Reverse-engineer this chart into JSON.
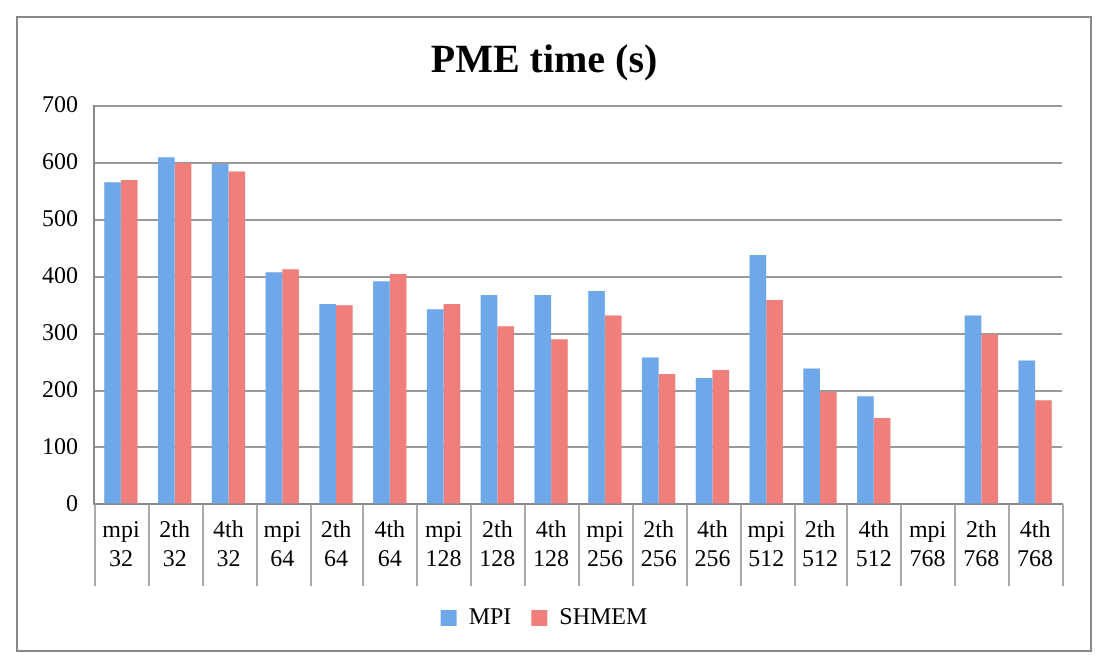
{
  "chart_data": {
    "type": "bar",
    "title": "PME time (s)",
    "categories": [
      "mpi 32",
      "2th 32",
      "4th 32",
      "mpi 64",
      "2th 64",
      "4th 64",
      "mpi 128",
      "2th 128",
      "4th 128",
      "mpi 256",
      "2th 256",
      "4th 256",
      "mpi 512",
      "2th 512",
      "4th 512",
      "mpi 768",
      "2th 768",
      "4th 768"
    ],
    "series": [
      {
        "name": "MPI",
        "color": "#6fa8e8",
        "values": [
          566,
          610,
          598,
          408,
          352,
          392,
          343,
          368,
          368,
          375,
          258,
          222,
          438,
          239,
          190,
          null,
          332,
          253
        ]
      },
      {
        "name": "SHMEM",
        "color": "#f07f7b",
        "values": [
          570,
          600,
          585,
          413,
          350,
          405,
          352,
          313,
          290,
          332,
          229,
          236,
          359,
          198,
          152,
          null,
          299,
          183
        ]
      }
    ],
    "ylim": [
      0,
      700
    ],
    "yticks": [
      0,
      100,
      200,
      300,
      400,
      500,
      600,
      700
    ],
    "grid": "y",
    "legend": "bottom"
  }
}
